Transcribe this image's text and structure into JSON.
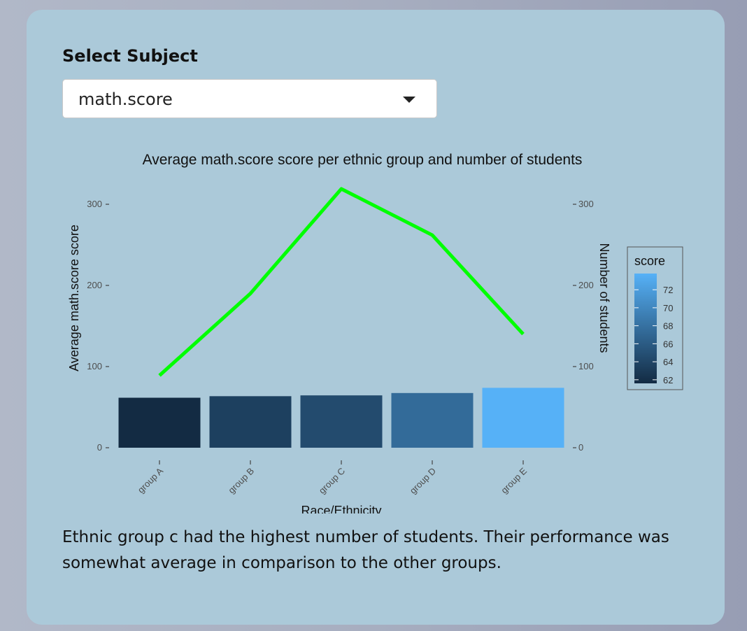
{
  "control": {
    "label": "Select Subject",
    "selected": "math.score"
  },
  "chart_data": {
    "type": "bar",
    "title": "Average  math.score  score per ethnic group and number of students",
    "xlabel": "Race/Ethnicity",
    "ylabel": "Average math.score score",
    "y2label": "Number of students",
    "categories": [
      "group A",
      "group B",
      "group C",
      "group D",
      "group E"
    ],
    "ylim": [
      0,
      300
    ],
    "yticks": [
      0,
      100,
      200,
      300
    ],
    "y2ticks": [
      0,
      100,
      200,
      300
    ],
    "series": [
      {
        "name": "score",
        "kind": "bar",
        "values": [
          61.6,
          63.5,
          64.5,
          67.4,
          73.8
        ]
      },
      {
        "name": "",
        "kind": "line",
        "values": [
          89,
          190,
          319,
          262,
          140
        ],
        "color": "#00ff00"
      }
    ],
    "legend": {
      "title": "score",
      "position": "right",
      "ticks": [
        62,
        64,
        66,
        68,
        70,
        72
      ],
      "range": [
        61.6,
        73.8
      ],
      "colors": [
        "#132b43",
        "#56b1f7"
      ]
    },
    "grid": false
  },
  "caption": "Ethnic group c had the highest number of students. Their performance was somewhat average in comparison to the other groups."
}
